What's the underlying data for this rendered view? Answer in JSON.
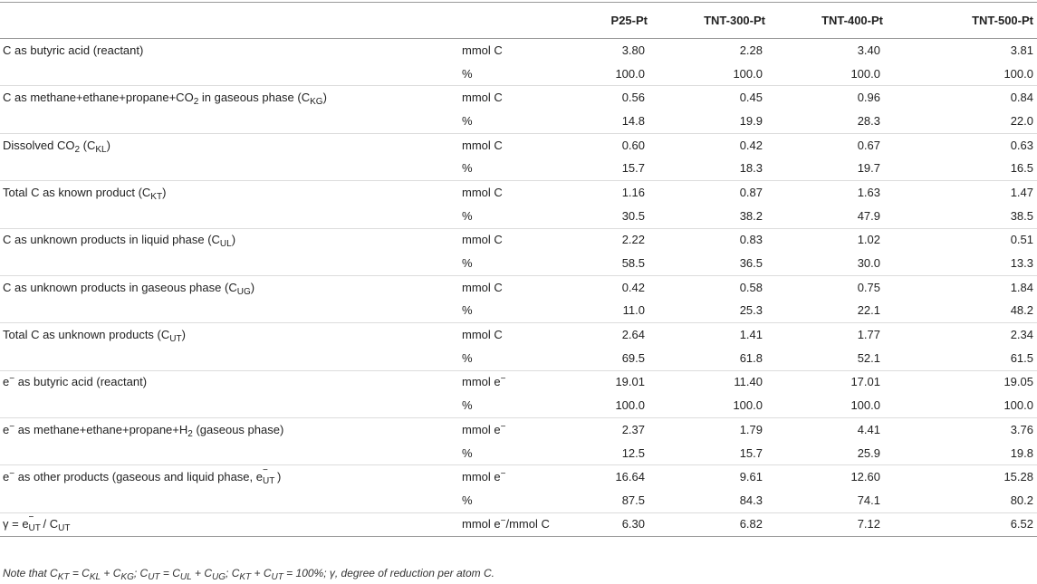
{
  "table": {
    "headers": [
      "",
      "",
      "P25-Pt",
      "TNT-300-Pt",
      "TNT-400-Pt",
      "TNT-500-Pt"
    ],
    "rows": [
      {
        "label_pre": "C as butyric acid (reactant)",
        "unit": "mmol C",
        "values": [
          "3.80",
          "2.28",
          "3.40",
          "3.81"
        ]
      },
      {
        "label_pre": "",
        "unit": "%",
        "values": [
          "100.0",
          "100.0",
          "100.0",
          "100.0"
        ]
      },
      {
        "label_pre": "C as methane+ethane+propane+CO",
        "label_sub": "2",
        "label_mid": " in gaseous phase (C",
        "label_sub2": "KG",
        "label_post": ")",
        "unit": "mmol C",
        "values": [
          "0.56",
          "0.45",
          "0.96",
          "0.84"
        ]
      },
      {
        "label_pre": "",
        "unit": "%",
        "values": [
          "14.8",
          "19.9",
          "28.3",
          "22.0"
        ]
      },
      {
        "label_pre": "Dissolved CO",
        "label_sub": "2",
        "label_mid": " (C",
        "label_sub2": "KL",
        "label_post": ")",
        "unit": "mmol C",
        "values": [
          "0.60",
          "0.42",
          "0.67",
          "0.63"
        ]
      },
      {
        "label_pre": "",
        "unit": "%",
        "values": [
          "15.7",
          "18.3",
          "19.7",
          "16.5"
        ]
      },
      {
        "label_pre": "Total C as known product (C",
        "label_sub": "KT",
        "label_post": ")",
        "unit": "mmol C",
        "values": [
          "1.16",
          "0.87",
          "1.63",
          "1.47"
        ]
      },
      {
        "label_pre": "",
        "unit": "%",
        "values": [
          "30.5",
          "38.2",
          "47.9",
          "38.5"
        ]
      },
      {
        "label_pre": "C as unknown products in liquid phase (C",
        "label_sub": "UL",
        "label_post": ")",
        "unit": "mmol C",
        "values": [
          "2.22",
          "0.83",
          "1.02",
          "0.51"
        ]
      },
      {
        "label_pre": "",
        "unit": "%",
        "values": [
          "58.5",
          "36.5",
          "30.0",
          "13.3"
        ]
      },
      {
        "label_pre": "C as unknown products in gaseous phase (C",
        "label_sub": "UG",
        "label_post": ")",
        "unit": "mmol C",
        "values": [
          "0.42",
          "0.58",
          "0.75",
          "1.84"
        ]
      },
      {
        "label_pre": "",
        "unit": "%",
        "values": [
          "11.0",
          "25.3",
          "22.1",
          "48.2"
        ]
      },
      {
        "label_pre": "Total C as unknown products (C",
        "label_sub": "UT",
        "label_post": ")",
        "unit": "mmol C",
        "values": [
          "2.64",
          "1.41",
          "1.77",
          "2.34"
        ]
      },
      {
        "label_pre": "",
        "unit": "%",
        "values": [
          "69.5",
          "61.8",
          "52.1",
          "61.5"
        ]
      },
      {
        "label_pre": "e",
        "label_sup": "−",
        "label_post": " as butyric acid (reactant)",
        "unit_pre": "mmol e",
        "unit_sup": "−",
        "values": [
          "19.01",
          "11.40",
          "17.01",
          "19.05"
        ]
      },
      {
        "label_pre": "",
        "unit": "%",
        "values": [
          "100.0",
          "100.0",
          "100.0",
          "100.0"
        ]
      },
      {
        "label_pre": "e",
        "label_sup": "−",
        "label_mid": " as methane+ethane+propane+H",
        "label_sub": "2",
        "label_post": " (gaseous phase)",
        "unit_pre": "mmol e",
        "unit_sup": "−",
        "values": [
          "2.37",
          "1.79",
          "4.41",
          "3.76"
        ]
      },
      {
        "label_pre": "",
        "unit": "%",
        "values": [
          "12.5",
          "15.7",
          "25.9",
          "19.8"
        ]
      },
      {
        "label_pre": "e",
        "label_sup": "−",
        "label_mid": " as other products (gaseous and liquid phase, e",
        "label_ss_up": "−",
        "label_ss_dn": "UT",
        "label_post": ")",
        "unit_pre": "mmol e",
        "unit_sup": "−",
        "values": [
          "16.64",
          "9.61",
          "12.60",
          "15.28"
        ]
      },
      {
        "label_pre": "",
        "unit": "%",
        "values": [
          "87.5",
          "84.3",
          "74.1",
          "80.2"
        ]
      },
      {
        "label_pre": "γ = e",
        "label_ss_up": "−",
        "label_ss_dn": "UT",
        "label_post": "/ C",
        "label_sub_end": "UT",
        "unit_pre": "mmol e",
        "unit_sup": "−",
        "unit_post": "/mmol C",
        "values": [
          "6.30",
          "6.82",
          "7.12",
          "6.52"
        ]
      }
    ]
  },
  "note": {
    "prefix": "Note that ",
    "parts": [
      "C",
      "KT",
      " = C",
      "KL",
      " + C",
      "KG",
      "; C",
      "UT",
      " = C",
      "UL",
      " + C",
      "UG",
      "; C",
      "KT",
      " + C",
      "UT",
      " = 100%; γ, degree of reduction per atom C."
    ]
  }
}
